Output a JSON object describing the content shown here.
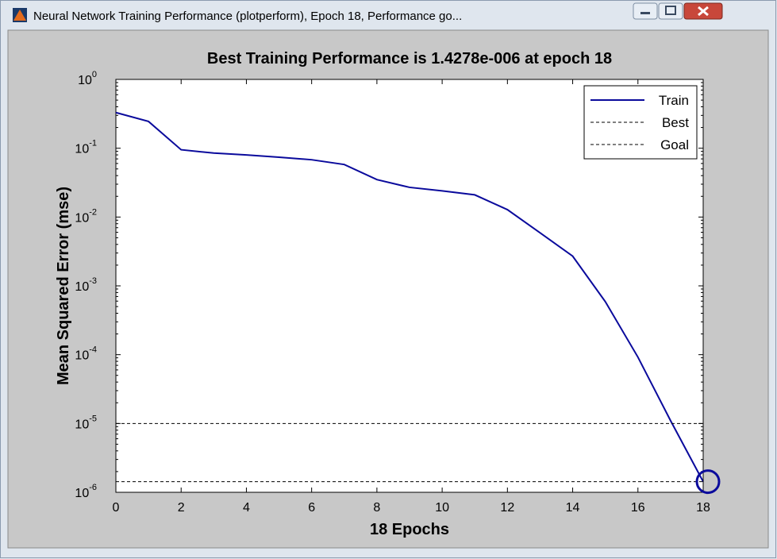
{
  "window": {
    "title": "Neural Network Training Performance (plotperform), Epoch 18, Performance go..."
  },
  "chart_data": {
    "type": "line",
    "title": "Best Training Performance is 1.4278e-006 at epoch 18",
    "xlabel": "18 Epochs",
    "ylabel": "Mean Squared Error  (mse)",
    "x": [
      0,
      1,
      2,
      3,
      4,
      5,
      6,
      7,
      8,
      9,
      10,
      11,
      12,
      13,
      14,
      15,
      16,
      17,
      18
    ],
    "series": [
      {
        "name": "Train",
        "color": "#0a0a9c",
        "values": [
          0.33,
          0.245,
          0.095,
          0.085,
          0.08,
          0.074,
          0.068,
          0.058,
          0.035,
          0.027,
          0.024,
          0.021,
          0.0128,
          0.0059,
          0.0027,
          0.00059,
          9.2e-05,
          1.1e-05,
          1.4278e-06
        ]
      }
    ],
    "best": {
      "name": "Best",
      "epoch": 18,
      "value": 1.4278e-06,
      "color": "#000000"
    },
    "goal": {
      "name": "Goal",
      "value": 1e-05,
      "color": "#000000"
    },
    "xlim": [
      0,
      18
    ],
    "xticks": [
      0,
      2,
      4,
      6,
      8,
      10,
      12,
      14,
      16,
      18
    ],
    "ylim": [
      1e-06,
      1
    ],
    "yscale": "log",
    "yticks": [
      {
        "value": 1e-06,
        "label": "10",
        "exponent": "-6"
      },
      {
        "value": 1e-05,
        "label": "10",
        "exponent": "-5"
      },
      {
        "value": 0.0001,
        "label": "10",
        "exponent": "-4"
      },
      {
        "value": 0.001,
        "label": "10",
        "exponent": "-3"
      },
      {
        "value": 0.01,
        "label": "10",
        "exponent": "-2"
      },
      {
        "value": 0.1,
        "label": "10",
        "exponent": "-1"
      },
      {
        "value": 1,
        "label": "10",
        "exponent": "0"
      }
    ],
    "legend": "northeast"
  }
}
